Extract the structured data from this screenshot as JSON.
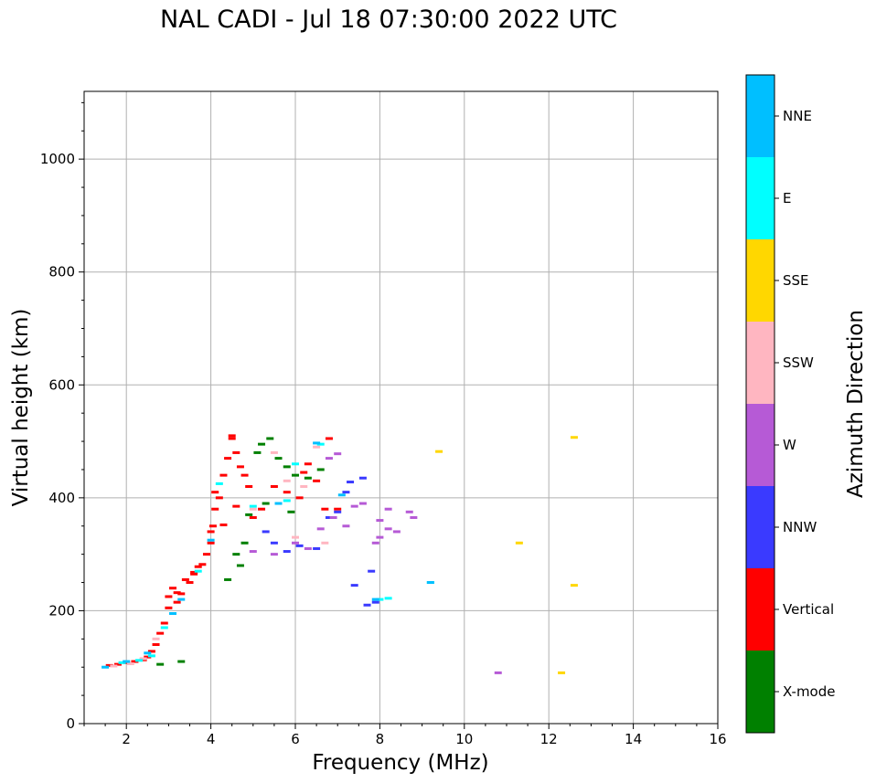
{
  "chart_data": {
    "type": "scatter",
    "title": "NAL CADI - Jul 18 07:30:00 2022 UTC",
    "xlabel": "Frequency (MHz)",
    "ylabel": "Virtual height (km)",
    "xlim": [
      1,
      16
    ],
    "ylim": [
      0,
      1120
    ],
    "xticks": [
      2,
      4,
      6,
      8,
      10,
      12,
      14,
      16
    ],
    "yticks": [
      0,
      200,
      400,
      600,
      800,
      1000
    ],
    "grid": true,
    "colorbar": {
      "label": "Azimuth Direction",
      "categories": [
        {
          "name": "X-mode",
          "color": "#008000"
        },
        {
          "name": "Vertical",
          "color": "#ff0000"
        },
        {
          "name": "NNW",
          "color": "#3a3aff"
        },
        {
          "name": "W",
          "color": "#b65ad6"
        },
        {
          "name": "SSW",
          "color": "#ffb6c1"
        },
        {
          "name": "SSE",
          "color": "#ffd700"
        },
        {
          "name": "E",
          "color": "#00ffff"
        },
        {
          "name": "NNE",
          "color": "#00bfff"
        }
      ]
    },
    "series": [
      {
        "name": "Vertical",
        "points": [
          [
            1.6,
            103
          ],
          [
            1.8,
            105
          ],
          [
            2.0,
            108
          ],
          [
            2.2,
            110
          ],
          [
            2.4,
            113
          ],
          [
            2.5,
            118
          ],
          [
            2.6,
            128
          ],
          [
            2.7,
            140
          ],
          [
            2.8,
            160
          ],
          [
            2.9,
            178
          ],
          [
            3.0,
            205
          ],
          [
            3.0,
            225
          ],
          [
            3.1,
            240
          ],
          [
            3.2,
            215
          ],
          [
            3.3,
            230
          ],
          [
            3.4,
            255
          ],
          [
            3.5,
            250
          ],
          [
            3.6,
            265
          ],
          [
            3.7,
            278
          ],
          [
            3.8,
            282
          ],
          [
            3.9,
            300
          ],
          [
            4.0,
            320
          ],
          [
            4.05,
            350
          ],
          [
            4.1,
            380
          ],
          [
            4.1,
            410
          ],
          [
            4.2,
            400
          ],
          [
            4.3,
            440
          ],
          [
            4.4,
            470
          ],
          [
            4.5,
            505
          ],
          [
            4.6,
            480
          ],
          [
            4.7,
            455
          ],
          [
            4.8,
            440
          ],
          [
            4.6,
            385
          ],
          [
            4.9,
            420
          ],
          [
            5.0,
            365
          ],
          [
            5.2,
            380
          ],
          [
            5.5,
            420
          ],
          [
            5.8,
            410
          ],
          [
            6.1,
            400
          ],
          [
            6.2,
            445
          ],
          [
            6.3,
            460
          ],
          [
            6.5,
            430
          ],
          [
            6.7,
            380
          ],
          [
            6.8,
            505
          ],
          [
            7.0,
            380
          ],
          [
            3.2,
            232
          ],
          [
            3.6,
            268
          ],
          [
            4.0,
            340
          ],
          [
            4.3,
            352
          ],
          [
            4.5,
            510
          ]
        ]
      },
      {
        "name": "X-mode",
        "points": [
          [
            3.3,
            110
          ],
          [
            4.4,
            255
          ],
          [
            4.6,
            300
          ],
          [
            4.8,
            320
          ],
          [
            4.9,
            370
          ],
          [
            5.1,
            480
          ],
          [
            5.2,
            495
          ],
          [
            5.4,
            505
          ],
          [
            5.6,
            470
          ],
          [
            5.8,
            455
          ],
          [
            6.0,
            440
          ],
          [
            5.9,
            375
          ],
          [
            6.3,
            435
          ],
          [
            6.6,
            450
          ],
          [
            2.8,
            105
          ],
          [
            4.7,
            280
          ],
          [
            5.3,
            390
          ]
        ]
      },
      {
        "name": "NNW",
        "points": [
          [
            5.3,
            340
          ],
          [
            5.5,
            320
          ],
          [
            5.8,
            305
          ],
          [
            6.1,
            315
          ],
          [
            6.5,
            310
          ],
          [
            6.8,
            365
          ],
          [
            7.0,
            375
          ],
          [
            7.2,
            410
          ],
          [
            7.3,
            428
          ],
          [
            7.6,
            435
          ],
          [
            7.4,
            245
          ],
          [
            7.7,
            210
          ],
          [
            7.8,
            270
          ],
          [
            7.9,
            215
          ]
        ]
      },
      {
        "name": "W",
        "points": [
          [
            5.0,
            305
          ],
          [
            5.5,
            300
          ],
          [
            6.0,
            320
          ],
          [
            6.3,
            310
          ],
          [
            6.6,
            345
          ],
          [
            6.9,
            365
          ],
          [
            7.2,
            350
          ],
          [
            7.4,
            385
          ],
          [
            7.6,
            390
          ],
          [
            7.9,
            320
          ],
          [
            8.0,
            330
          ],
          [
            8.0,
            360
          ],
          [
            8.2,
            345
          ],
          [
            8.4,
            340
          ],
          [
            8.2,
            380
          ],
          [
            8.7,
            375
          ],
          [
            8.8,
            365
          ],
          [
            7.0,
            478
          ],
          [
            6.8,
            470
          ],
          [
            10.8,
            90
          ]
        ]
      },
      {
        "name": "SSW",
        "points": [
          [
            1.7,
            102
          ],
          [
            2.1,
            106
          ],
          [
            2.4,
            115
          ],
          [
            2.7,
            150
          ],
          [
            5.5,
            480
          ],
          [
            5.8,
            430
          ],
          [
            6.2,
            420
          ],
          [
            6.5,
            490
          ],
          [
            6.0,
            330
          ],
          [
            5.0,
            380
          ],
          [
            6.7,
            320
          ]
        ]
      },
      {
        "name": "SSE",
        "points": [
          [
            9.4,
            482
          ],
          [
            11.3,
            320
          ],
          [
            12.3,
            90
          ],
          [
            12.6,
            507
          ],
          [
            12.6,
            245
          ]
        ]
      },
      {
        "name": "E",
        "points": [
          [
            1.9,
            108
          ],
          [
            2.3,
            112
          ],
          [
            2.6,
            120
          ],
          [
            2.9,
            170
          ],
          [
            3.7,
            270
          ],
          [
            4.2,
            425
          ],
          [
            5.0,
            385
          ],
          [
            5.8,
            395
          ],
          [
            6.0,
            460
          ],
          [
            6.6,
            495
          ],
          [
            8.0,
            220
          ],
          [
            8.2,
            222
          ],
          [
            9.2,
            250
          ]
        ]
      },
      {
        "name": "NNE",
        "points": [
          [
            1.5,
            100
          ],
          [
            2.0,
            110
          ],
          [
            2.5,
            125
          ],
          [
            3.1,
            195
          ],
          [
            3.3,
            220
          ],
          [
            4.0,
            325
          ],
          [
            5.6,
            390
          ],
          [
            6.5,
            497
          ],
          [
            7.9,
            220
          ],
          [
            9.2,
            250
          ],
          [
            7.1,
            405
          ]
        ]
      }
    ]
  }
}
